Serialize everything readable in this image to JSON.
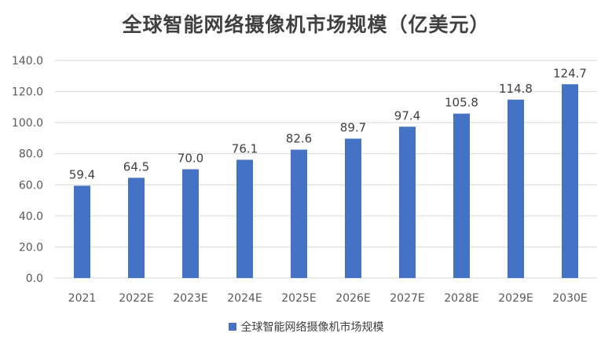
{
  "chart_data": {
    "type": "bar",
    "title": "全球智能网络摄像机市场规模（亿美元）",
    "categories": [
      "2021",
      "2022E",
      "2023E",
      "2024E",
      "2025E",
      "2026E",
      "2027E",
      "2028E",
      "2029E",
      "2030E"
    ],
    "series": [
      {
        "name": "全球智能网络摄像机市场规模",
        "values": [
          59.4,
          64.5,
          70.0,
          76.1,
          82.6,
          89.7,
          97.4,
          105.8,
          114.8,
          124.7
        ],
        "labels": [
          "59.4",
          "64.5",
          "70.0",
          "76.1",
          "82.6",
          "89.7",
          "97.4",
          "105.8",
          "114.8",
          "124.7"
        ]
      }
    ],
    "ylim": [
      0,
      140
    ],
    "yticks": [
      "0.0",
      "20.0",
      "40.0",
      "60.0",
      "80.0",
      "100.0",
      "120.0",
      "140.0"
    ],
    "ytick_values": [
      0,
      20,
      40,
      60,
      80,
      100,
      120,
      140
    ],
    "grid": true,
    "legend": "bottom",
    "bar_color": "#4472C4",
    "grid_color": "#D9D9D9"
  }
}
